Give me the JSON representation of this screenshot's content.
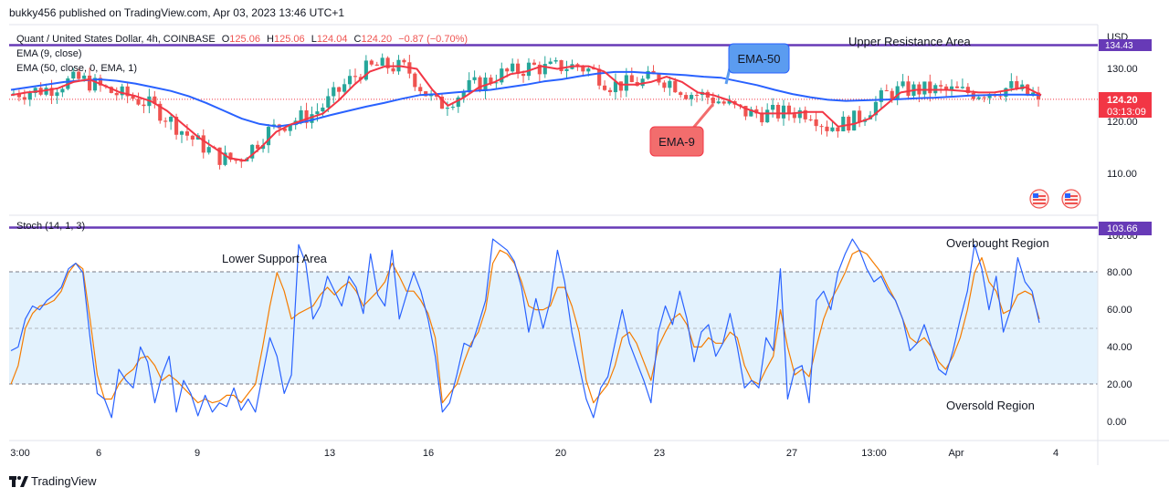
{
  "header": {
    "publisher": "bukky456 published on TradingView.com, Apr 03, 2023 13:46 UTC+1"
  },
  "symbol": {
    "name": "Quant / United States Dollar, 4h, COINBASE",
    "o_label": "O",
    "o": "125.06",
    "h_label": "H",
    "h": "125.06",
    "l_label": "L",
    "l": "124.04",
    "c_label": "C",
    "c": "124.20",
    "change": "−0.87 (−0.70%)"
  },
  "indicators": {
    "ema9_label": "EMA (9, close)",
    "ema50_label": "EMA (50, close, 0, EMA, 1)",
    "stoch_label": "Stoch (14, 1, 3)"
  },
  "price_axis": {
    "currency": "USD",
    "ticks": [
      "130.00",
      "120.00",
      "110.00"
    ],
    "resistance_value": "134.43",
    "last_price": "124.20",
    "countdown": "03:13:09"
  },
  "stoch_axis": {
    "ticks": [
      "100.00",
      "80.00",
      "60.00",
      "40.00",
      "20.00",
      "0.00"
    ],
    "line_value": "103.66"
  },
  "time_axis": {
    "ticks": [
      "3:00",
      "6",
      "9",
      "13",
      "16",
      "20",
      "23",
      "27",
      "13:00",
      "Apr",
      "4"
    ]
  },
  "annotations": {
    "upper_resistance": "Upper Resistance Area",
    "lower_support": "Lower Support Area",
    "ema50": "EMA-50",
    "ema9": "EMA-9",
    "overbought": "Overbought Region",
    "oversold": "Oversold Region"
  },
  "footer": {
    "brand": "TradingView"
  },
  "colors": {
    "up": "#26a69a",
    "down": "#ef5350",
    "ema9": "#f23645",
    "ema50": "#2962ff",
    "resistance": "#673ab7",
    "stoch_k": "#2962ff",
    "stoch_d": "#f57c00",
    "band": "#e3f2fd",
    "last_price": "#f23645",
    "ema50_callout": "#5b9cf0",
    "ema9_callout": "#f26d6d"
  },
  "chart_data": {
    "type": "candlestick",
    "timeframe": "4h",
    "price_range": [
      103,
      136
    ],
    "resistance_level": 134.43,
    "last_close": 124.2,
    "ema9": [
      125.0,
      125.5,
      125.8,
      126.3,
      127.5,
      128.0,
      126.8,
      125.5,
      124.8,
      123.8,
      122.0,
      119.5,
      117.0,
      115.0,
      113.0,
      112.5,
      115.0,
      118.0,
      119.5,
      120.5,
      121.5,
      124.0,
      127.0,
      129.5,
      130.5,
      130.5,
      130.0,
      126.0,
      123.0,
      124.5,
      126.5,
      127.5,
      129.0,
      129.5,
      130.5,
      130.0,
      130.5,
      130.5,
      129.5,
      127.0,
      127.0,
      127.5,
      128.5,
      127.5,
      125.5,
      125.0,
      124.0,
      122.5,
      121.5,
      121.5,
      121.5,
      121.8,
      121.8,
      119.0,
      119.5,
      120.5,
      123.0,
      125.5,
      126.0,
      126.0,
      126.0,
      125.8,
      125.5,
      125.5,
      126.0,
      126.5,
      125.0
    ],
    "ema50": [
      126.0,
      126.5,
      127.0,
      127.5,
      127.8,
      128.0,
      127.7,
      127.2,
      126.5,
      125.8,
      124.8,
      123.5,
      122.0,
      120.5,
      119.5,
      119.0,
      119.5,
      120.3,
      121.2,
      122.0,
      122.8,
      123.5,
      124.3,
      125.0,
      125.2,
      125.5,
      125.8,
      126.0,
      126.5,
      127.0,
      127.6,
      128.0,
      128.6,
      129.1,
      129.4,
      129.4,
      129.2,
      129.0,
      128.8,
      128.5,
      128.3,
      127.6,
      126.9,
      126.0,
      125.2,
      124.6,
      124.1,
      123.9,
      124.0,
      124.1,
      124.2,
      124.4,
      124.5,
      124.7,
      124.9,
      125.0,
      125.1,
      125.1,
      125.0
    ],
    "stoch_k": [
      38,
      40,
      55,
      62,
      60,
      65,
      68,
      72,
      82,
      85,
      80,
      45,
      15,
      12,
      2,
      28,
      22,
      18,
      40,
      32,
      10,
      25,
      35,
      5,
      22,
      15,
      3,
      14,
      5,
      10,
      8,
      18,
      6,
      12,
      5,
      25,
      45,
      35,
      15,
      25,
      95,
      85,
      55,
      62,
      78,
      70,
      62,
      78,
      72,
      58,
      90,
      68,
      62,
      92,
      55,
      68,
      80,
      70,
      55,
      35,
      5,
      10,
      25,
      42,
      40,
      52,
      65,
      98,
      95,
      92,
      86,
      72,
      48,
      66,
      50,
      65,
      92,
      75,
      48,
      30,
      12,
      2,
      18,
      24,
      42,
      60,
      42,
      32,
      22,
      10,
      48,
      62,
      52,
      70,
      55,
      32,
      48,
      52,
      35,
      42,
      58,
      40,
      18,
      22,
      18,
      45,
      38,
      82,
      12,
      28,
      30,
      10,
      65,
      70,
      60,
      80,
      90,
      98,
      92,
      82,
      75,
      78,
      70,
      65,
      55,
      38,
      42,
      52,
      40,
      28,
      25,
      38,
      55,
      70,
      95,
      82,
      60,
      78,
      48,
      60,
      88,
      75,
      70,
      53
    ],
    "stoch_d": [
      20,
      30,
      50,
      58,
      62,
      63,
      65,
      70,
      80,
      85,
      82,
      55,
      25,
      12,
      12,
      20,
      25,
      28,
      34,
      35,
      30,
      22,
      25,
      22,
      18,
      14,
      10,
      12,
      10,
      11,
      14,
      14,
      10,
      15,
      20,
      40,
      62,
      80,
      70,
      55,
      58,
      60,
      62,
      68,
      72,
      68,
      72,
      75,
      70,
      62,
      66,
      70,
      75,
      85,
      78,
      70,
      70,
      65,
      58,
      45,
      10,
      15,
      20,
      32,
      42,
      48,
      60,
      85,
      92,
      90,
      85,
      75,
      62,
      60,
      60,
      62,
      72,
      72,
      62,
      48,
      22,
      10,
      15,
      20,
      30,
      45,
      48,
      42,
      32,
      22,
      40,
      48,
      55,
      58,
      52,
      40,
      40,
      45,
      42,
      42,
      48,
      45,
      30,
      22,
      20,
      28,
      35,
      60,
      40,
      25,
      28,
      24,
      40,
      55,
      65,
      72,
      80,
      90,
      92,
      90,
      85,
      80,
      72,
      65,
      55,
      45,
      42,
      45,
      40,
      32,
      28,
      35,
      45,
      60,
      80,
      88,
      75,
      70,
      58,
      60,
      68,
      70,
      68,
      55
    ]
  }
}
